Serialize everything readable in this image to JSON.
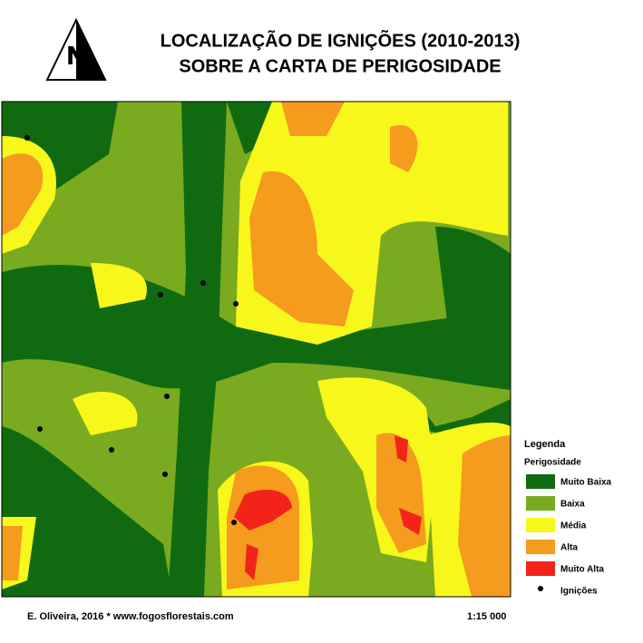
{
  "title": [
    "LOCALIZAÇÃO DE IGNIÇÕES (2010-2013)",
    "SOBRE A CARTA DE PERIGOSIDADE"
  ],
  "legend": {
    "title": "Legenda",
    "subtitle": "Perigosidade",
    "classes": [
      {
        "label": "Muito Baixa",
        "color": "#106b10"
      },
      {
        "label": "Baixa",
        "color": "#7aaa1f"
      },
      {
        "label": "Média",
        "color": "#f7f71c"
      },
      {
        "label": "Alta",
        "color": "#f59b1d"
      },
      {
        "label": "Muito Alta",
        "color": "#f2241a"
      }
    ],
    "points": {
      "label": "Ignições"
    }
  },
  "footer": {
    "credit": "E. Oliveira, 2016 * www.fogosflorestais.com",
    "scale": "1:15 000"
  }
}
